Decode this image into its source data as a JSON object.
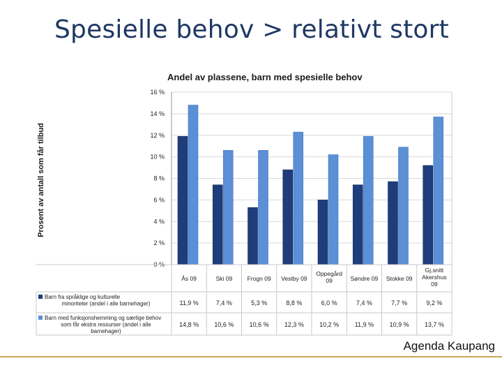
{
  "slide": {
    "title": "Spesielle behov > relativt stort",
    "footer": "Agenda Kaupang"
  },
  "colors": {
    "dark": "#1f3d7a",
    "light": "#5b8fd6",
    "grid": "#d9d9d9"
  },
  "chart_data": {
    "type": "bar",
    "title": "Andel av plassene, barn med spesielle behov",
    "ylabel": "Prosent av antall som får tilbud",
    "ylim": [
      0,
      16
    ],
    "yticks": [
      "0 %",
      "2 %",
      "4 %",
      "6 %",
      "8 %",
      "10 %",
      "12 %",
      "14 %",
      "16 %"
    ],
    "grid": true,
    "legend_placement": "bottom-table",
    "categories": [
      "Ås 09",
      "Ski 09",
      "Frogn 09",
      "Vestby 09",
      "Oppegård 09",
      "Søndre 09",
      "Stokke 09",
      "Gj.snitt Akershus 09"
    ],
    "series": [
      {
        "name": "Barn fra språklige og kulturelle minoriteter (andel i alle barnehager)",
        "color": "#1f3d7a",
        "values": [
          11.9,
          7.4,
          5.3,
          8.8,
          6.0,
          7.4,
          7.7,
          9.2
        ],
        "labels": [
          "11,9 %",
          "7,4 %",
          "5,3 %",
          "8,8 %",
          "6,0 %",
          "7,4 %",
          "7,7 %",
          "9,2 %"
        ]
      },
      {
        "name": "Barn med funksjonshemming og særlige behov som får ekstra ressurser (andel i alle barnehager)",
        "color": "#5b8fd6",
        "values": [
          14.8,
          10.6,
          10.6,
          12.3,
          10.2,
          11.9,
          10.9,
          13.7
        ],
        "labels": [
          "14,8 %",
          "10,6 %",
          "10,6 %",
          "12,3 %",
          "10,2 %",
          "11,9 %",
          "10,9 %",
          "13,7 %"
        ]
      }
    ]
  }
}
